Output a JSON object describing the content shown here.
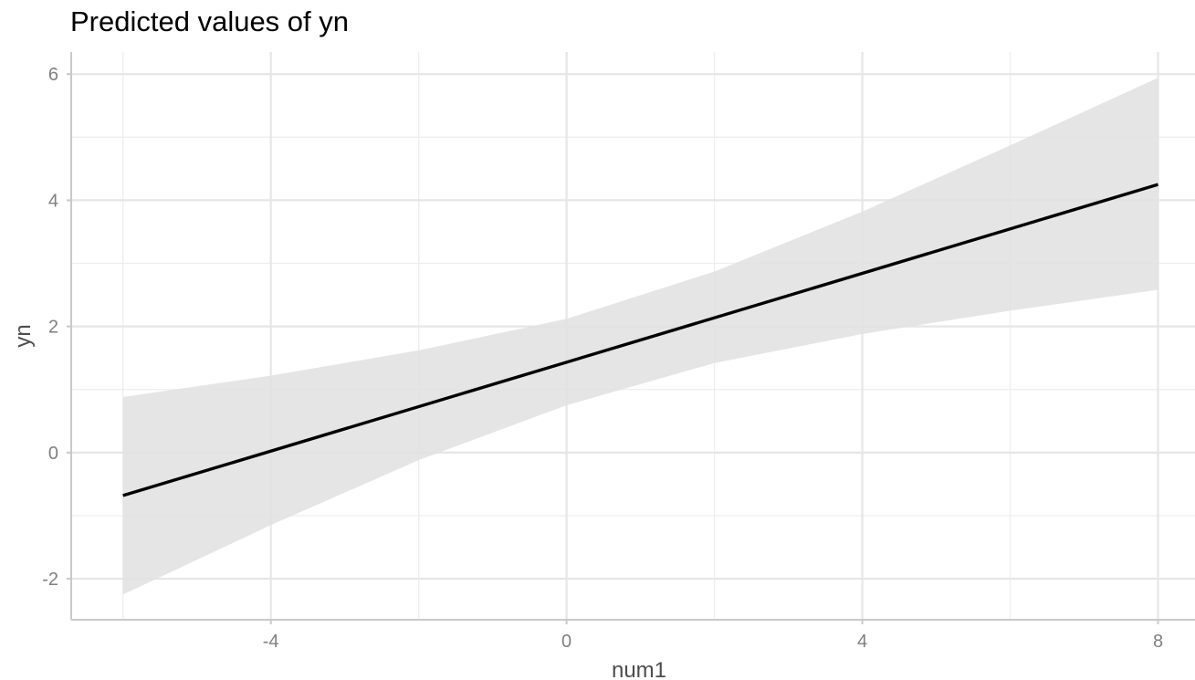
{
  "chart_data": {
    "type": "line",
    "title": "Predicted values of yn",
    "xlabel": "num1",
    "ylabel": "yn",
    "xlim": [
      -6.7,
      8.5
    ],
    "ylim": [
      -2.65,
      6.35
    ],
    "x_ticks": [
      -4,
      0,
      4,
      8
    ],
    "y_ticks": [
      -2,
      0,
      2,
      4,
      6
    ],
    "x_minor": [
      -6,
      -2,
      2,
      6
    ],
    "y_minor": [
      -1,
      1,
      3,
      5
    ],
    "grid": true,
    "legend": "none",
    "series": [
      {
        "x": [
          -6,
          8
        ],
        "y": [
          -0.68,
          4.25
        ],
        "color": "#000000"
      }
    ],
    "ribbon": {
      "x": [
        -6,
        -4,
        -2,
        0,
        2,
        4,
        6,
        8
      ],
      "lower": [
        -2.25,
        -1.15,
        -0.12,
        0.75,
        1.42,
        1.88,
        2.25,
        2.58
      ],
      "upper": [
        0.88,
        1.22,
        1.62,
        2.12,
        2.87,
        3.82,
        4.87,
        5.94
      ],
      "color": "#e0e0e0"
    }
  }
}
